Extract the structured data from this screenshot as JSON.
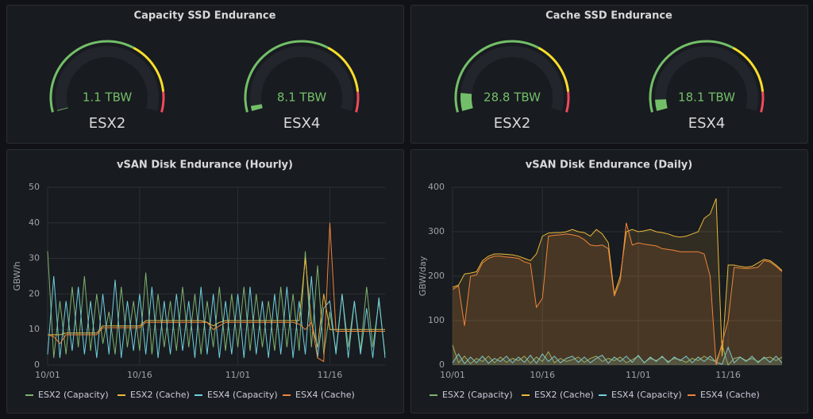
{
  "chart_data": [
    {
      "type": "gauge",
      "title": "Capacity SSD Endurance",
      "categories": [
        "ESX2",
        "ESX4"
      ],
      "values": [
        1.1,
        8.1
      ],
      "value_labels": [
        "1.1 TBW",
        "8.1 TBW"
      ],
      "range": [
        0,
        300
      ],
      "thresholds": [
        {
          "value": 0,
          "color": "#73bf69"
        },
        {
          "value": 190,
          "color": "#fade2a"
        },
        {
          "value": 270,
          "color": "#f2495c"
        }
      ],
      "color": "#73bf69"
    },
    {
      "type": "gauge",
      "title": "Cache SSD Endurance",
      "categories": [
        "ESX2",
        "ESX4"
      ],
      "values": [
        28.8,
        18.1
      ],
      "value_labels": [
        "28.8 TBW",
        "18.1 TBW"
      ],
      "range": [
        0,
        300
      ],
      "thresholds": [
        {
          "value": 0,
          "color": "#73bf69"
        },
        {
          "value": 190,
          "color": "#fade2a"
        },
        {
          "value": 270,
          "color": "#f2495c"
        }
      ],
      "color": "#73bf69"
    },
    {
      "type": "line",
      "title": "vSAN Disk Endurance (Hourly)",
      "y_label": "GBW/h",
      "fill": false,
      "grid": true,
      "x": [
        "10/01",
        "10/02",
        "10/03",
        "10/04",
        "10/05",
        "10/06",
        "10/07",
        "10/08",
        "10/09",
        "10/10",
        "10/11",
        "10/12",
        "10/13",
        "10/14",
        "10/15",
        "10/16",
        "10/17",
        "10/18",
        "10/19",
        "10/20",
        "10/21",
        "10/22",
        "10/23",
        "10/24",
        "10/25",
        "10/26",
        "10/27",
        "10/28",
        "10/29",
        "10/30",
        "10/31",
        "11/01",
        "11/02",
        "11/03",
        "11/04",
        "11/05",
        "11/06",
        "11/07",
        "11/08",
        "11/09",
        "11/10",
        "11/11",
        "11/12",
        "11/13",
        "11/14",
        "11/15",
        "11/16",
        "11/17",
        "11/18",
        "11/19",
        "11/20",
        "11/21",
        "11/22",
        "11/23",
        "11/24",
        "11/25"
      ],
      "xticks": [
        "10/01",
        "10/16",
        "11/01",
        "11/16"
      ],
      "ylim": [
        0,
        50
      ],
      "yticks": [
        0,
        10,
        20,
        30,
        40,
        50
      ],
      "series": [
        {
          "name": "ESX2 (Capacity)",
          "color": "#7eb26d",
          "values": [
            32,
            2,
            18,
            3,
            22,
            5,
            25,
            4,
            20,
            6,
            15,
            3,
            22,
            5,
            18,
            4,
            26,
            3,
            20,
            5,
            18,
            4,
            22,
            5,
            20,
            3,
            18,
            5,
            22,
            4,
            20,
            5,
            22,
            4,
            20,
            5,
            18,
            4,
            22,
            5,
            20,
            4,
            32,
            5,
            28,
            3,
            15,
            4,
            20,
            5,
            18,
            4,
            22,
            5,
            18,
            3
          ]
        },
        {
          "name": "ESX2 (Cache)",
          "color": "#eab839",
          "values": [
            8.5,
            8.5,
            8.5,
            9,
            9,
            9,
            9,
            9,
            9,
            11,
            11,
            11,
            11,
            11,
            11,
            11,
            12.5,
            12.5,
            12.5,
            12.5,
            12.5,
            12.5,
            12.5,
            12.5,
            12.5,
            12.5,
            12,
            11,
            12,
            12.5,
            12.5,
            12.5,
            12.5,
            12.5,
            12.5,
            12.5,
            12.5,
            12.5,
            12.5,
            12.5,
            12.5,
            12.5,
            30,
            12,
            5,
            20,
            10,
            10,
            10,
            10,
            10,
            10,
            10,
            10,
            10,
            10
          ]
        },
        {
          "name": "ESX4 (Capacity)",
          "color": "#6ed0e0",
          "values": [
            3,
            25,
            2,
            18,
            4,
            22,
            3,
            18,
            2,
            20,
            3,
            24,
            2,
            18,
            4,
            20,
            3,
            22,
            2,
            18,
            3,
            20,
            4,
            18,
            2,
            22,
            3,
            20,
            2,
            18,
            3,
            20,
            2,
            22,
            3,
            18,
            2,
            20,
            3,
            22,
            2,
            18,
            3,
            25,
            2,
            16,
            18,
            3,
            20,
            2,
            18,
            3,
            16,
            2,
            19,
            2
          ]
        },
        {
          "name": "ESX4 (Cache)",
          "color": "#ef843c",
          "values": [
            8.5,
            8,
            6,
            8.5,
            8.5,
            8.5,
            8.5,
            8.5,
            8.5,
            10.5,
            10.5,
            10.5,
            10.5,
            10.5,
            10.5,
            10.5,
            12,
            12,
            12,
            12,
            12,
            12,
            12,
            12,
            12,
            12,
            12,
            10,
            11,
            12,
            12,
            12,
            12,
            12,
            12,
            12,
            12,
            12,
            12,
            12,
            12,
            11.5,
            10,
            12,
            2,
            1,
            40,
            9.5,
            9.5,
            9.5,
            9.5,
            9.5,
            9.5,
            9.5,
            9.5,
            9.5
          ]
        }
      ]
    },
    {
      "type": "line",
      "title": "vSAN Disk Endurance (Daily)",
      "y_label": "GBW/day",
      "fill": true,
      "grid": true,
      "x": [
        "10/01",
        "10/02",
        "10/03",
        "10/04",
        "10/05",
        "10/06",
        "10/07",
        "10/08",
        "10/09",
        "10/10",
        "10/11",
        "10/12",
        "10/13",
        "10/14",
        "10/15",
        "10/16",
        "10/17",
        "10/18",
        "10/19",
        "10/20",
        "10/21",
        "10/22",
        "10/23",
        "10/24",
        "10/25",
        "10/26",
        "10/27",
        "10/28",
        "10/29",
        "10/30",
        "10/31",
        "11/01",
        "11/02",
        "11/03",
        "11/04",
        "11/05",
        "11/06",
        "11/07",
        "11/08",
        "11/09",
        "11/10",
        "11/11",
        "11/12",
        "11/13",
        "11/14",
        "11/15",
        "11/16",
        "11/17",
        "11/18",
        "11/19",
        "11/20",
        "11/21",
        "11/22",
        "11/23",
        "11/24",
        "11/25"
      ],
      "xticks": [
        "10/01",
        "10/16",
        "11/01",
        "11/16"
      ],
      "ylim": [
        0,
        400
      ],
      "yticks": [
        0,
        100,
        200,
        300,
        400
      ],
      "series": [
        {
          "name": "ESX2 (Capacity)",
          "color": "#7eb26d",
          "values": [
            45,
            5,
            20,
            3,
            15,
            8,
            20,
            5,
            18,
            6,
            15,
            10,
            20,
            4,
            18,
            8,
            30,
            5,
            15,
            8,
            12,
            18,
            6,
            15,
            20,
            8,
            15,
            10,
            18,
            5,
            12,
            20,
            6,
            15,
            10,
            18,
            8,
            15,
            12,
            6,
            15,
            10,
            20,
            12,
            8,
            45,
            0,
            15,
            18,
            10,
            15,
            8,
            15,
            18,
            10,
            18
          ]
        },
        {
          "name": "ESX2 (Cache)",
          "color": "#eab839",
          "values": [
            175,
            180,
            205,
            207,
            210,
            235,
            245,
            250,
            250,
            249,
            248,
            245,
            240,
            235,
            250,
            290,
            297,
            298,
            298,
            300,
            305,
            300,
            298,
            290,
            305,
            295,
            275,
            160,
            200,
            300,
            305,
            300,
            302,
            305,
            300,
            298,
            295,
            290,
            288,
            290,
            295,
            300,
            330,
            340,
            375,
            20,
            225,
            225,
            222,
            220,
            222,
            230,
            238,
            235,
            225,
            213
          ]
        },
        {
          "name": "ESX4 (Capacity)",
          "color": "#6ed0e0",
          "values": [
            5,
            25,
            3,
            18,
            5,
            20,
            4,
            15,
            8,
            20,
            5,
            18,
            6,
            22,
            4,
            25,
            8,
            20,
            5,
            15,
            20,
            6,
            18,
            5,
            15,
            22,
            4,
            18,
            8,
            20,
            6,
            22,
            5,
            18,
            8,
            20,
            5,
            18,
            10,
            20,
            5,
            18,
            8,
            20,
            6,
            2,
            40,
            5,
            18,
            8,
            20,
            5,
            18,
            6,
            20,
            5
          ]
        },
        {
          "name": "ESX4 (Cache)",
          "color": "#ef843c",
          "values": [
            170,
            178,
            88,
            200,
            203,
            230,
            240,
            245,
            245,
            243,
            242,
            240,
            232,
            228,
            130,
            150,
            290,
            292,
            293,
            295,
            293,
            290,
            282,
            270,
            268,
            270,
            262,
            155,
            190,
            320,
            270,
            275,
            272,
            270,
            268,
            262,
            260,
            258,
            255,
            255,
            255,
            255,
            250,
            200,
            0,
            50,
            100,
            220,
            218,
            217,
            218,
            220,
            235,
            232,
            222,
            210
          ]
        }
      ]
    }
  ]
}
